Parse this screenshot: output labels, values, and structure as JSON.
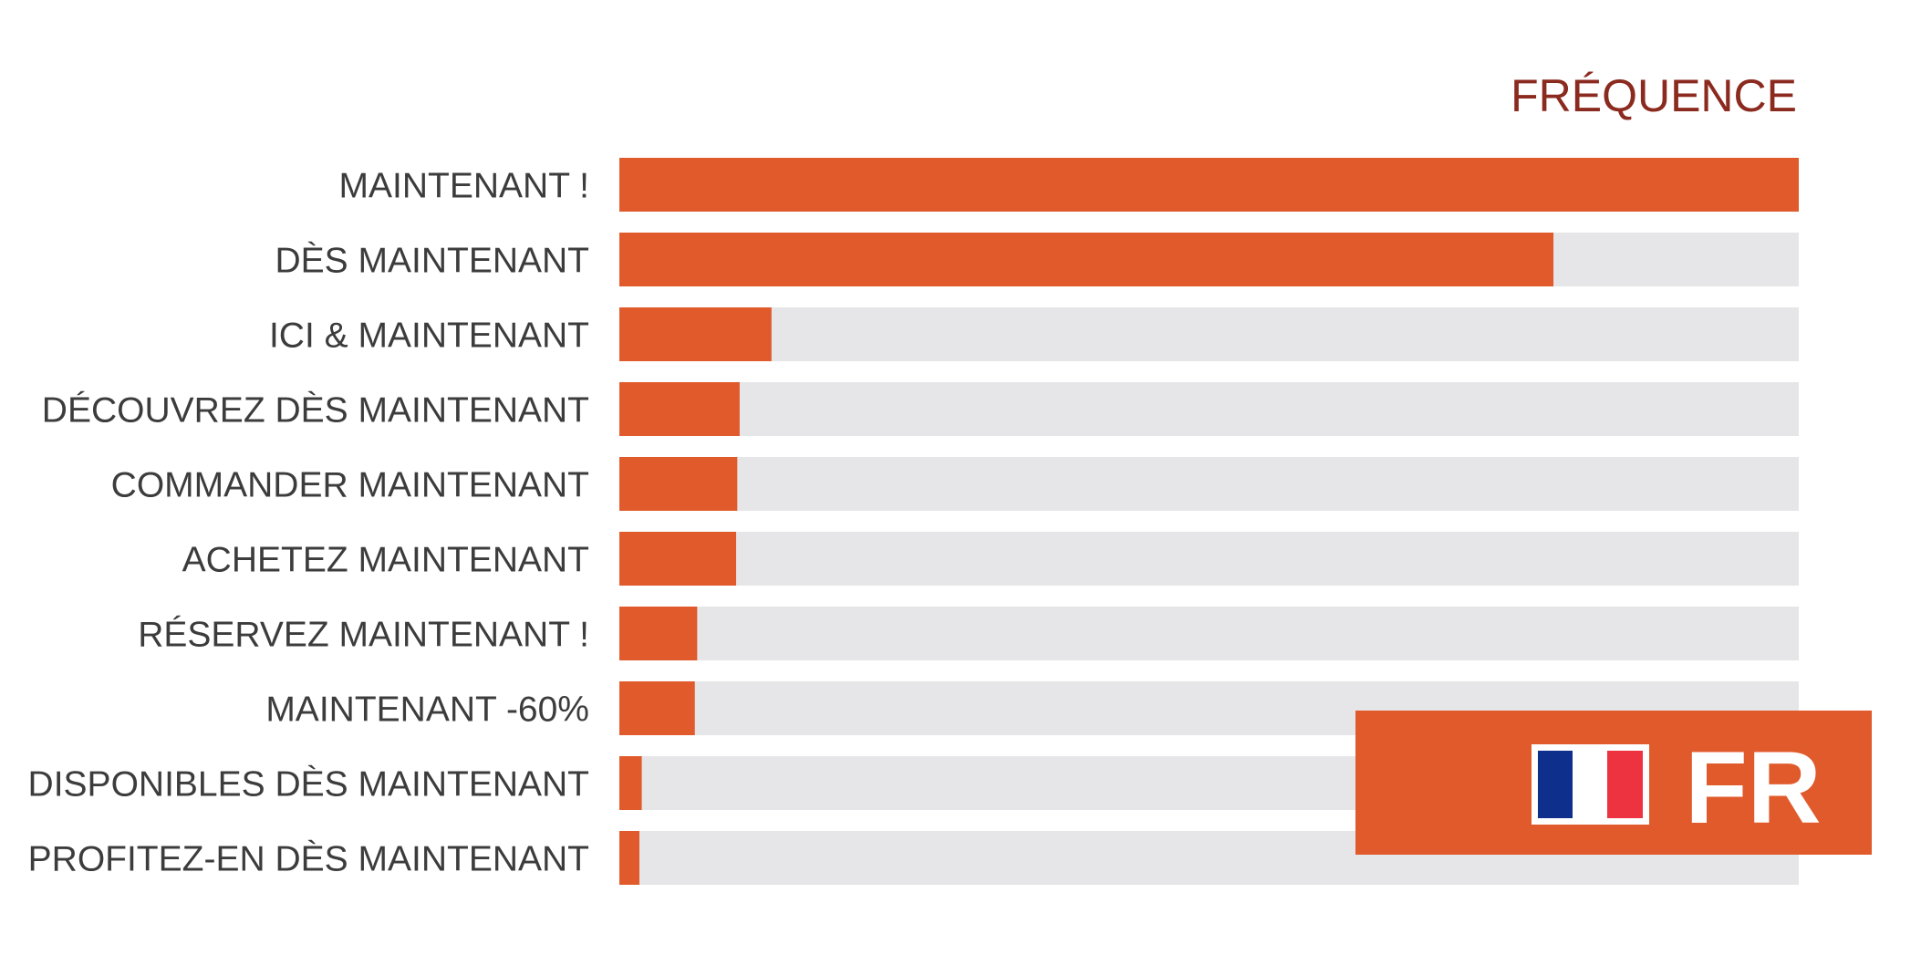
{
  "chart_data": {
    "type": "bar",
    "orientation": "horizontal",
    "title": "FRÉQUENCE",
    "categories": [
      "MAINTENANT !",
      "DÈS MAINTENANT",
      "ICI & MAINTENANT",
      "DÉCOUVREZ DÈS MAINTENANT",
      "COMMANDER MAINTENANT",
      "ACHETEZ MAINTENANT",
      "RÉSERVEZ MAINTENANT !",
      "MAINTENANT -60%",
      "DISPONIBLES DÈS MAINTENANT",
      "PROFITEZ-EN DÈS MAINTENANT"
    ],
    "values": [
      100,
      79.2,
      12.9,
      10.2,
      10.0,
      9.9,
      6.6,
      6.4,
      1.9,
      1.7
    ],
    "xlim": [
      0,
      100
    ],
    "grid": false,
    "bar_color": "#e05a2b",
    "track_color": "#e6e6e8",
    "title_color": "#8b2a1e"
  },
  "badge": {
    "text": "FR",
    "background": "#e05a2b",
    "flag_colors": [
      "#0f2f8c",
      "#ffffff",
      "#ee3340"
    ]
  }
}
